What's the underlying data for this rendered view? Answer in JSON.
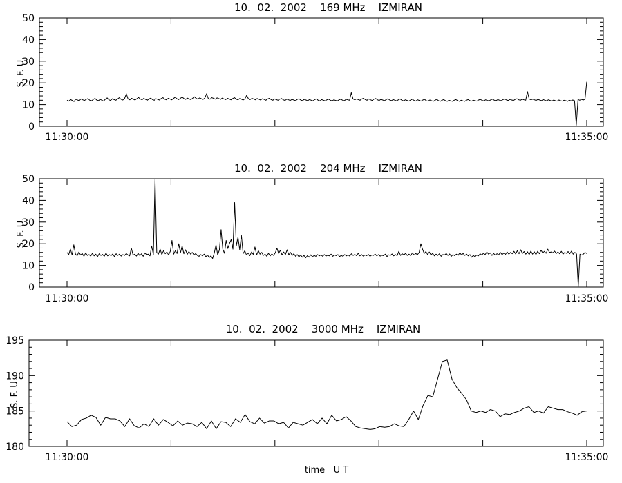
{
  "chart_data": [
    {
      "type": "line",
      "title": "10.  02.  2002    169 MHz    IZMIRAN",
      "ylabel": "S. F. U.",
      "xlabel": "",
      "x_start": "11:30:00",
      "x_end": "11:35:00",
      "xticks": [
        "11:30:00",
        "11:35:00"
      ],
      "ylim": [
        0,
        50
      ],
      "yticks": [
        0,
        10,
        20,
        30,
        40,
        50
      ],
      "grid": false,
      "series": [
        {
          "values": [
            12,
            11.6,
            12.3,
            11.9,
            11.4,
            12.5,
            12.1,
            11.8,
            12.6,
            12.2,
            11.9,
            12.4,
            12.8,
            12.0,
            11.7,
            12.3,
            12.9,
            12.1,
            11.8,
            12.4,
            12.0,
            11.6,
            12.5,
            13.1,
            12.2,
            11.9,
            12.7,
            12.3,
            12.0,
            12.6,
            13.2,
            12.4,
            12.1,
            12.8,
            15.0,
            12.6,
            12.2,
            12.9,
            12.5,
            12.1,
            12.7,
            13.3,
            12.6,
            12.2,
            12.9,
            12.4,
            12.0,
            12.6,
            13.0,
            12.3,
            12.0,
            12.7,
            12.4,
            12.1,
            12.8,
            13.2,
            12.5,
            12.2,
            12.9,
            12.6,
            12.2,
            12.8,
            13.4,
            12.7,
            12.3,
            12.9,
            13.5,
            12.8,
            12.4,
            13.0,
            12.6,
            12.3,
            12.9,
            13.6,
            12.9,
            12.5,
            13.1,
            12.7,
            12.4,
            13.0,
            15.0,
            12.8,
            12.5,
            13.2,
            12.9,
            12.5,
            13.1,
            12.8,
            12.4,
            13.0,
            12.6,
            12.3,
            12.9,
            12.6,
            12.2,
            12.8,
            13.2,
            12.5,
            12.2,
            12.8,
            12.5,
            12.1,
            12.7,
            14.3,
            12.7,
            12.3,
            12.9,
            12.6,
            12.2,
            12.8,
            12.5,
            12.1,
            12.7,
            12.4,
            12.0,
            12.6,
            12.9,
            12.3,
            12.0,
            12.6,
            12.3,
            12.0,
            12.5,
            12.8,
            12.2,
            11.9,
            12.5,
            12.2,
            11.9,
            12.4,
            12.1,
            11.8,
            12.4,
            12.7,
            12.1,
            11.8,
            12.4,
            12.1,
            11.8,
            12.3,
            12.0,
            11.7,
            12.3,
            12.6,
            12.0,
            11.7,
            12.3,
            12.0,
            11.7,
            12.2,
            12.5,
            12.0,
            11.7,
            12.2,
            11.9,
            11.7,
            12.2,
            12.5,
            12.0,
            11.8,
            12.4,
            12.2,
            12.0,
            15.5,
            12.6,
            12.2,
            12.6,
            12.3,
            12.0,
            12.6,
            12.9,
            12.3,
            12.0,
            12.6,
            12.2,
            11.9,
            12.5,
            12.8,
            12.2,
            11.9,
            12.4,
            12.1,
            11.8,
            12.3,
            12.7,
            12.1,
            11.8,
            12.3,
            12.0,
            11.7,
            12.2,
            12.6,
            12.0,
            11.7,
            12.2,
            11.9,
            11.6,
            12.1,
            12.5,
            11.9,
            11.6,
            12.2,
            11.9,
            11.6,
            12.1,
            12.4,
            11.8,
            11.6,
            12.1,
            11.8,
            11.5,
            12.0,
            12.4,
            11.8,
            11.5,
            12.0,
            12.3,
            11.8,
            11.5,
            12.0,
            11.7,
            11.5,
            12.0,
            12.3,
            11.8,
            11.5,
            12.0,
            11.7,
            11.5,
            12.0,
            12.3,
            11.8,
            11.6,
            12.0,
            11.8,
            11.6,
            12.1,
            12.4,
            11.9,
            11.7,
            12.2,
            11.9,
            11.7,
            12.2,
            12.5,
            12.0,
            11.8,
            12.3,
            12.0,
            11.8,
            12.3,
            12.6,
            12.1,
            11.9,
            12.4,
            12.1,
            11.9,
            12.4,
            12.7,
            12.2,
            12.0,
            12.5,
            12.2,
            12.0,
            16.0,
            12.6,
            12.2,
            12.5,
            12.2,
            11.9,
            12.4,
            12.1,
            11.8,
            12.3,
            12.0,
            11.7,
            12.2,
            11.9,
            11.6,
            12.1,
            11.8,
            11.6,
            12.1,
            11.8,
            11.6,
            12.0,
            11.8,
            11.5,
            12.0,
            11.7,
            12.1,
            11.8,
            0.5,
            12.3,
            12.0,
            12.4,
            12.1,
            12.5,
            20.5
          ]
        }
      ]
    },
    {
      "type": "line",
      "title": "10.  02.  2002    204 MHz    IZMIRAN",
      "ylabel": "S. F. U.",
      "xlabel": "",
      "x_start": "11:30:00",
      "x_end": "11:35:00",
      "xticks": [
        "11:30:00",
        "11:35:00"
      ],
      "ylim": [
        0,
        50
      ],
      "yticks": [
        0,
        10,
        20,
        30,
        40,
        50
      ],
      "grid": false,
      "series": [
        {
          "values": [
            16,
            15,
            17.5,
            14.8,
            19.5,
            15.2,
            14.5,
            16.2,
            14.8,
            15.5,
            14.2,
            15.8,
            14.6,
            15.0,
            14.3,
            15.6,
            14.4,
            15.2,
            14.0,
            15.4,
            14.6,
            15.1,
            14.2,
            15.7,
            14.4,
            15.0,
            14.5,
            15.3,
            14.1,
            15.4,
            14.6,
            15.2,
            14.3,
            15.0,
            14.6,
            15.5,
            14.8,
            14.4,
            18.0,
            14.8,
            15.2,
            14.3,
            15.6,
            14.5,
            15.4,
            14.2,
            15.8,
            14.9,
            15.2,
            14.4,
            19.0,
            15.0,
            50,
            16.0,
            15.2,
            17.5,
            15.0,
            16.8,
            15.4,
            16.2,
            14.8,
            16.5,
            21.5,
            15.2,
            16.8,
            15.5,
            20.0,
            15.8,
            19.0,
            15.4,
            17.2,
            15.1,
            16.4,
            15.2,
            16.0,
            14.8,
            15.5,
            14.6,
            14.2,
            15.0,
            14.4,
            15.2,
            14.0,
            14.8,
            13.6,
            14.4,
            13.2,
            15.8,
            19.5,
            14.8,
            17.2,
            26.5,
            17.5,
            15.6,
            21.5,
            17.8,
            20.2,
            22.0,
            17.5,
            39.0,
            19.0,
            23.0,
            17.2,
            24.0,
            15.4,
            16.8,
            14.8,
            15.8,
            14.5,
            16.2,
            15.1,
            18.5,
            14.8,
            16.8,
            15.2,
            16.0,
            14.6,
            15.2,
            14.2,
            15.6,
            14.4,
            15.3,
            14.6,
            15.8,
            18.0,
            15.5,
            17.0,
            14.8,
            16.2,
            15.0,
            17.2,
            14.9,
            16.0,
            14.6,
            15.4,
            14.2,
            15.0,
            14.0,
            14.8,
            13.8,
            14.6,
            13.5,
            14.5,
            13.8,
            14.9,
            14.0,
            14.6,
            14.2,
            15.0,
            14.4,
            14.9,
            14.2,
            15.0,
            14.3,
            14.7,
            14.4,
            15.2,
            14.2,
            14.8,
            14.5,
            15.0,
            14.1,
            14.6,
            14.2,
            15.0,
            14.4,
            14.9,
            14.3,
            15.4,
            14.6,
            15.1,
            14.5,
            15.6,
            14.4,
            15.0,
            14.3,
            14.8,
            14.5,
            15.1,
            14.2,
            14.8,
            14.6,
            15.2,
            14.4,
            15.0,
            14.3,
            14.7,
            14.5,
            15.2,
            14.1,
            14.9,
            14.6,
            15.3,
            14.4,
            15.0,
            14.5,
            16.5,
            14.6,
            15.4,
            14.8,
            15.6,
            14.6,
            15.2,
            14.5,
            15.8,
            14.8,
            15.5,
            15.0,
            16.0,
            20.0,
            17.5,
            15.5,
            16.4,
            15.0,
            16.2,
            14.8,
            15.6,
            14.4,
            15.2,
            14.6,
            15.4,
            14.2,
            15.0,
            14.8,
            15.5,
            14.6,
            15.3,
            14.2,
            15.0,
            14.5,
            15.2,
            14.6,
            15.8,
            14.9,
            15.5,
            14.6,
            15.2,
            14.4,
            15.0,
            13.8,
            14.6,
            14.0,
            14.8,
            14.4,
            15.4,
            14.8,
            15.6,
            15.0,
            16.2,
            15.2,
            15.8,
            14.6,
            15.5,
            14.8,
            15.4,
            14.9,
            16.0,
            15.0,
            15.7,
            15.1,
            16.2,
            15.2,
            16.0,
            15.4,
            16.5,
            15.3,
            16.8,
            15.4,
            17.2,
            15.5,
            16.4,
            15.2,
            16.3,
            15.0,
            16.6,
            15.2,
            16.3,
            15.0,
            16.5,
            15.4,
            17.0,
            15.8,
            16.5,
            15.6,
            17.5,
            16.0,
            16.2,
            15.8,
            16.6,
            15.5,
            16.2,
            15.4,
            16.5,
            15.2,
            16.0,
            15.6,
            16.4,
            15.4,
            16.6,
            15.2,
            16.0,
            15.3,
            0.3,
            15.2,
            14.8,
            15.2,
            16.0,
            15.5
          ]
        }
      ]
    },
    {
      "type": "line",
      "title": "10.  02.  2002    3000 MHz    IZMIRAN",
      "ylabel": "S. F. U.",
      "xlabel": "time   U T",
      "x_start": "11:30:00",
      "x_end": "11:35:00",
      "xticks": [
        "11:30:00",
        "11:35:00"
      ],
      "ylim": [
        180,
        195
      ],
      "yticks": [
        180,
        185,
        190,
        195
      ],
      "grid": false,
      "series": [
        {
          "values": [
            183.5,
            182.8,
            183.0,
            183.8,
            184.0,
            184.4,
            184.1,
            183.0,
            184.1,
            183.9,
            183.9,
            183.6,
            182.8,
            183.9,
            182.9,
            182.6,
            183.2,
            182.8,
            183.9,
            183.0,
            183.8,
            183.4,
            182.9,
            183.6,
            183.0,
            183.3,
            183.2,
            182.8,
            183.4,
            182.5,
            183.6,
            182.5,
            183.5,
            183.4,
            182.8,
            183.9,
            183.4,
            184.5,
            183.5,
            183.2,
            184.0,
            183.3,
            183.6,
            183.6,
            183.2,
            183.4,
            182.6,
            183.4,
            183.2,
            183.0,
            183.4,
            183.8,
            183.2,
            184.0,
            183.2,
            184.4,
            183.6,
            183.8,
            184.2,
            183.6,
            182.8,
            182.6,
            182.5,
            182.4,
            182.5,
            182.8,
            182.7,
            182.8,
            183.2,
            182.9,
            182.8,
            183.8,
            185.0,
            183.8,
            185.8,
            187.2,
            187.0,
            189.5,
            192.0,
            192.2,
            189.5,
            188.3,
            187.5,
            186.6,
            185.0,
            184.8,
            185.0,
            184.8,
            185.2,
            185.0,
            184.2,
            184.6,
            184.5,
            184.8,
            185.0,
            185.4,
            185.6,
            184.8,
            185.0,
            184.7,
            185.6,
            185.4,
            185.2,
            185.2,
            184.9,
            184.7,
            184.4,
            184.9,
            185.0
          ]
        }
      ]
    }
  ]
}
